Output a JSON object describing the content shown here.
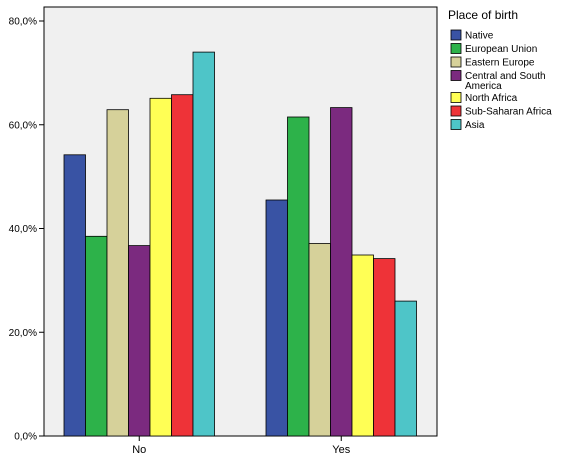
{
  "chart_data": {
    "type": "bar",
    "categories": [
      "No",
      "Yes"
    ],
    "series": [
      {
        "name": "Native",
        "color": "#3953a4",
        "values": [
          54.2,
          45.5
        ]
      },
      {
        "name": "European Union",
        "color": "#2db24a",
        "values": [
          38.5,
          61.5
        ]
      },
      {
        "name": "Eastern Europe",
        "color": "#d6d19a",
        "values": [
          62.9,
          37.1
        ]
      },
      {
        "name": "Central and South America",
        "color": "#7b2a7f",
        "values": [
          36.7,
          63.3
        ]
      },
      {
        "name": "North Africa",
        "color": "#ffff55",
        "values": [
          65.1,
          34.9
        ]
      },
      {
        "name": "Sub-Saharan Africa",
        "color": "#ee3338",
        "values": [
          65.8,
          34.2
        ]
      },
      {
        "name": "Asia",
        "color": "#4ec5c8",
        "values": [
          74.0,
          26.0
        ]
      }
    ],
    "yticks": [
      {
        "value": 0,
        "label": "0,0%"
      },
      {
        "value": 20,
        "label": "20,0%"
      },
      {
        "value": 40,
        "label": "40,0%"
      },
      {
        "value": 60,
        "label": "60,0%"
      },
      {
        "value": 80,
        "label": "80,0%"
      }
    ],
    "ylim": [
      0,
      82.7
    ],
    "legend_title": "Place of birth",
    "legend_labels": [
      "Native",
      "European Union",
      "Eastern Europe",
      [
        "Central and South",
        "America"
      ],
      "North Africa",
      "Sub-Saharan Africa",
      "Asia"
    ],
    "legend_position": "right",
    "plot_background": "#f0f0f0",
    "grid": false
  }
}
